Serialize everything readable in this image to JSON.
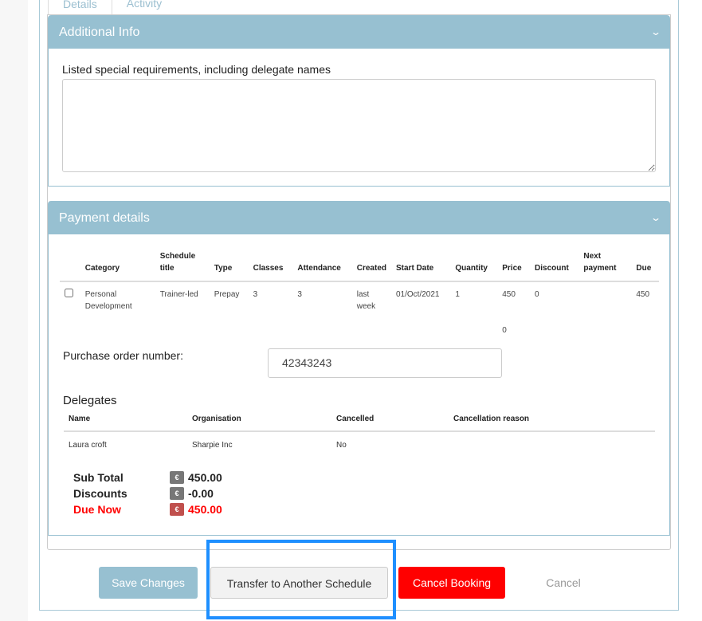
{
  "tabs": [
    "Details",
    "Activity"
  ],
  "additional_info": {
    "title": "Additional Info",
    "label": "Listed special requirements, including delegate names",
    "value": ""
  },
  "payment": {
    "title": "Payment details",
    "columns": [
      "",
      "Category",
      "Schedule title",
      "Type",
      "Classes",
      "Attendance",
      "Created",
      "Start Date",
      "Quantity",
      "Price",
      "Discount",
      "Next payment",
      "Due"
    ],
    "rows": [
      {
        "category": "Personal Development",
        "schedule_title": "Trainer-led",
        "type": "Prepay",
        "classes": "3",
        "attendance": "3",
        "created": "last week",
        "start_date": "01/Oct/2021",
        "quantity": "1",
        "price": "450",
        "discount": "0",
        "next_payment": "",
        "due": "450"
      }
    ],
    "extra_value": "0",
    "po_label": "Purchase order number:",
    "po_value": "42343243",
    "delegates_title": "Delegates",
    "delegate_columns": [
      "Name",
      "Organisation",
      "Cancelled",
      "Cancellation reason"
    ],
    "delegates": [
      {
        "name": "Laura croft",
        "organisation": "Sharpie Inc",
        "cancelled": "No",
        "reason": ""
      }
    ],
    "totals": {
      "currency": "€",
      "sub_total_label": "Sub Total",
      "sub_total": "450.00",
      "discounts_label": "Discounts",
      "discounts": "-0.00",
      "due_label": "Due Now",
      "due": "450.00"
    }
  },
  "buttons": {
    "save": "Save Changes",
    "transfer": "Transfer to Another Schedule",
    "cancel_booking": "Cancel Booking",
    "cancel": "Cancel"
  },
  "colors": {
    "panel_header": "#97c0d1",
    "danger": "#ff0000",
    "highlight": "#1e8fff"
  }
}
